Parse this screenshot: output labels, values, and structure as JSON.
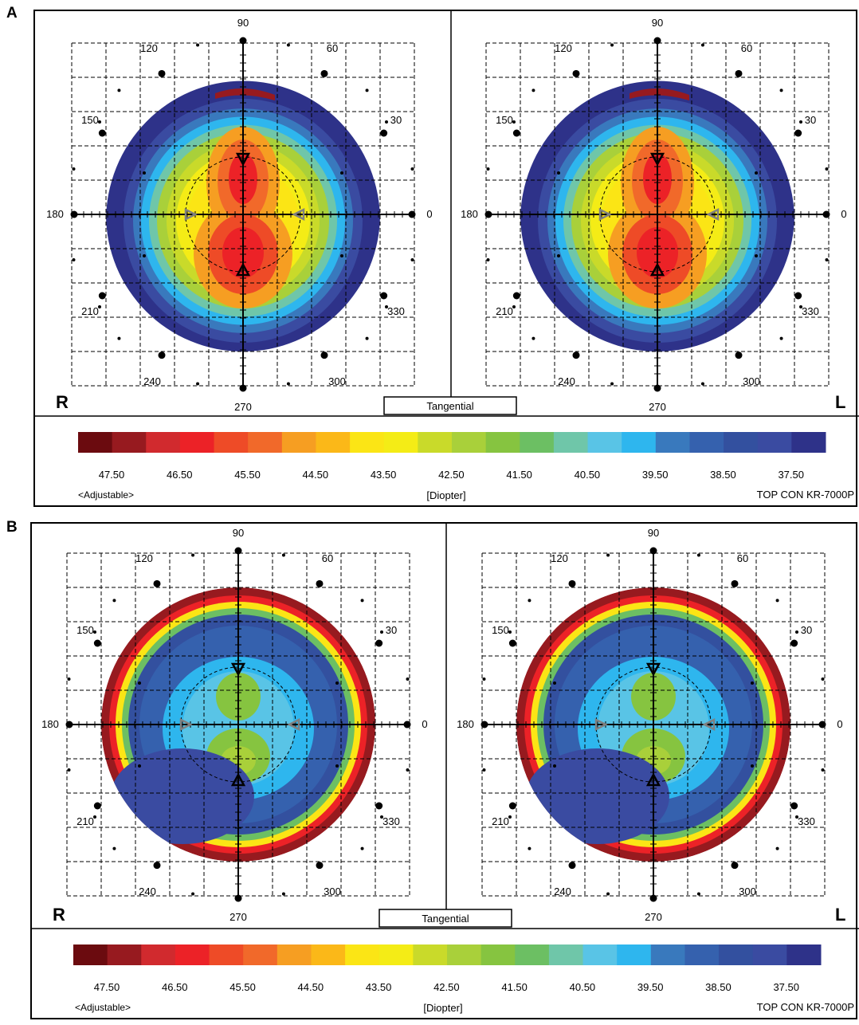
{
  "panels": [
    {
      "letter": "A",
      "mode_label": "Tangential",
      "eye_labels": {
        "right": "R",
        "left": "L"
      },
      "maps": [
        {
          "eye": "R",
          "pattern": "normal",
          "stem_orientation": "vertical"
        },
        {
          "eye": "L",
          "pattern": "normal",
          "stem_orientation": "vertical"
        }
      ]
    },
    {
      "letter": "B",
      "mode_label": "Tangential",
      "eye_labels": {
        "right": "R",
        "left": "L"
      },
      "maps": [
        {
          "eye": "R",
          "pattern": "flattened-center-steep-edge",
          "stem_orientation": "vertical"
        },
        {
          "eye": "L",
          "pattern": "flattened-center-steep-edge",
          "stem_orientation": "vertical"
        }
      ]
    }
  ],
  "axis_labels": [
    "90",
    "120",
    "60",
    "150",
    "30",
    "180",
    "0",
    "210",
    "330",
    "240",
    "300",
    "270"
  ],
  "scale": {
    "colors": [
      "#6b0b0f",
      "#971a1f",
      "#d12a2e",
      "#ec2227",
      "#ee4b27",
      "#f1692a",
      "#f69e22",
      "#fbb818",
      "#fbe515",
      "#f4ec16",
      "#c9da2a",
      "#a9d03a",
      "#86c440",
      "#6cbf63",
      "#6fc6a9",
      "#59c4e6",
      "#2eb6ee",
      "#3979bd",
      "#3561ae",
      "#33509f",
      "#3a4ba1",
      "#2e3289"
    ],
    "values": [
      "47.50",
      "46.50",
      "45.50",
      "44.50",
      "43.50",
      "42.50",
      "41.50",
      "40.50",
      "39.50",
      "38.50",
      "37.50"
    ],
    "left_note": "<Adjustable>",
    "unit": "[Diopter]",
    "device": "TOP CON KR-7000P"
  }
}
